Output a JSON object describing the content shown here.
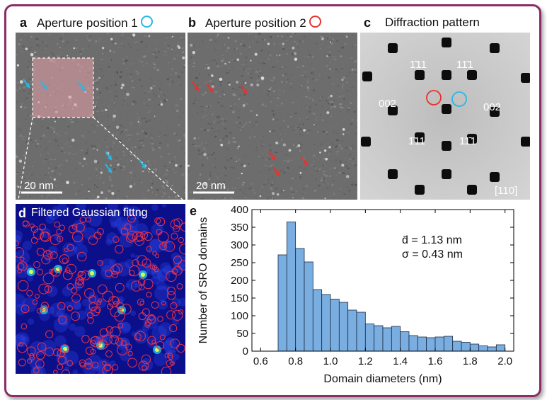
{
  "panels": {
    "a": {
      "label": "a",
      "title": "Aperture position 1",
      "scalebar": "20 nm"
    },
    "b": {
      "label": "b",
      "title": "Aperture position 2",
      "scalebar": "20 nm"
    },
    "c": {
      "label": "c",
      "title": "Diffraction pattern",
      "spots": [
        "1̄11",
        "11̄1",
        "002",
        "002",
        "1̄11",
        "11̄1"
      ],
      "zone_axis": "[110]"
    },
    "d": {
      "label": "d",
      "title": "Filtered Gaussian fittng"
    },
    "e": {
      "label": "e",
      "stat_mean": "d̄ = 1.13 nm",
      "stat_sigma": "σ = 0.43 nm"
    }
  },
  "colors": {
    "frame": "#8a2c66",
    "bar": "#7aaee0",
    "cyan": "#29b7e6",
    "red": "#e8322e"
  },
  "chart_data": {
    "type": "bar",
    "xlabel": "Domain diameters (nm)",
    "ylabel": "Number of SRO domains",
    "xlim": [
      0.55,
      2.05
    ],
    "ylim": [
      0,
      400
    ],
    "xticks": [
      0.6,
      0.8,
      1.0,
      1.2,
      1.4,
      1.6,
      1.8,
      2.0
    ],
    "xtick_labels": [
      "0.6",
      "0.8",
      "1.0",
      "1.2",
      "1.4",
      "1.6",
      "1.8",
      "2.0"
    ],
    "yticks": [
      0,
      50,
      100,
      150,
      200,
      250,
      300,
      350,
      400
    ],
    "ytick_labels": [
      "0",
      "50",
      "100",
      "150",
      "200",
      "250",
      "300",
      "350",
      "400"
    ],
    "bin_width": 0.05,
    "bin_starts": [
      0.7,
      0.75,
      0.8,
      0.85,
      0.9,
      0.95,
      1.0,
      1.05,
      1.1,
      1.15,
      1.2,
      1.25,
      1.3,
      1.35,
      1.4,
      1.45,
      1.5,
      1.55,
      1.6,
      1.65,
      1.7,
      1.75,
      1.8,
      1.85,
      1.9,
      1.95
    ],
    "values": [
      272,
      365,
      290,
      252,
      174,
      160,
      147,
      138,
      116,
      110,
      77,
      72,
      66,
      70,
      55,
      44,
      40,
      38,
      40,
      42,
      28,
      25,
      20,
      15,
      12,
      18
    ]
  }
}
